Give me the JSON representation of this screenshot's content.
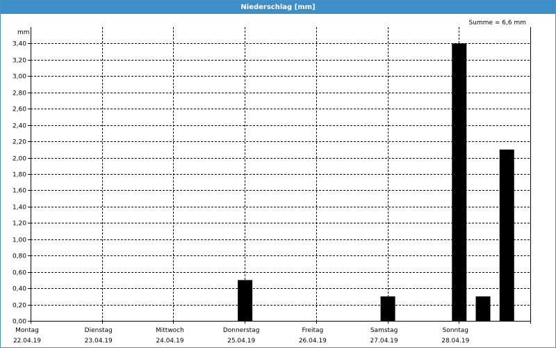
{
  "window": {
    "title": "Niederschlag [mm]"
  },
  "chart_data": {
    "type": "bar",
    "title": "Niederschlag [mm]",
    "summary": "Summe = 6,6 mm",
    "ylabel": "mm",
    "ylim": [
      0,
      3.6
    ],
    "y_ticks": [
      "0,00",
      "0,20",
      "0,40",
      "0,60",
      "0,80",
      "1,00",
      "1,20",
      "1,40",
      "1,60",
      "1,80",
      "2,00",
      "2,20",
      "2,40",
      "2,60",
      "2,80",
      "3,00",
      "3,20",
      "3,40"
    ],
    "x_days": [
      {
        "day": "Montag",
        "date": "22.04.19"
      },
      {
        "day": "Dienstag",
        "date": "23.04.19"
      },
      {
        "day": "Mittwoch",
        "date": "24.04.19"
      },
      {
        "day": "Donnerstag",
        "date": "25.04.19"
      },
      {
        "day": "Freitag",
        "date": "26.04.19"
      },
      {
        "day": "Samstag",
        "date": "27.04.19"
      },
      {
        "day": "Sonntag",
        "date": "28.04.19"
      }
    ],
    "bars": [
      {
        "date": "25.04.19",
        "time": "00:00",
        "value": 0.5
      },
      {
        "date": "27.04.19",
        "time": "00:00",
        "value": 0.3
      },
      {
        "date": "28.04.19",
        "time": "00:00",
        "value": 3.4
      },
      {
        "date": "28.04.19",
        "time": "08:00",
        "value": 0.3
      },
      {
        "date": "28.04.19",
        "time": "16:00",
        "value": 2.1
      }
    ],
    "bar_color": "#000000",
    "grid": true,
    "grid_style": "dashed"
  }
}
